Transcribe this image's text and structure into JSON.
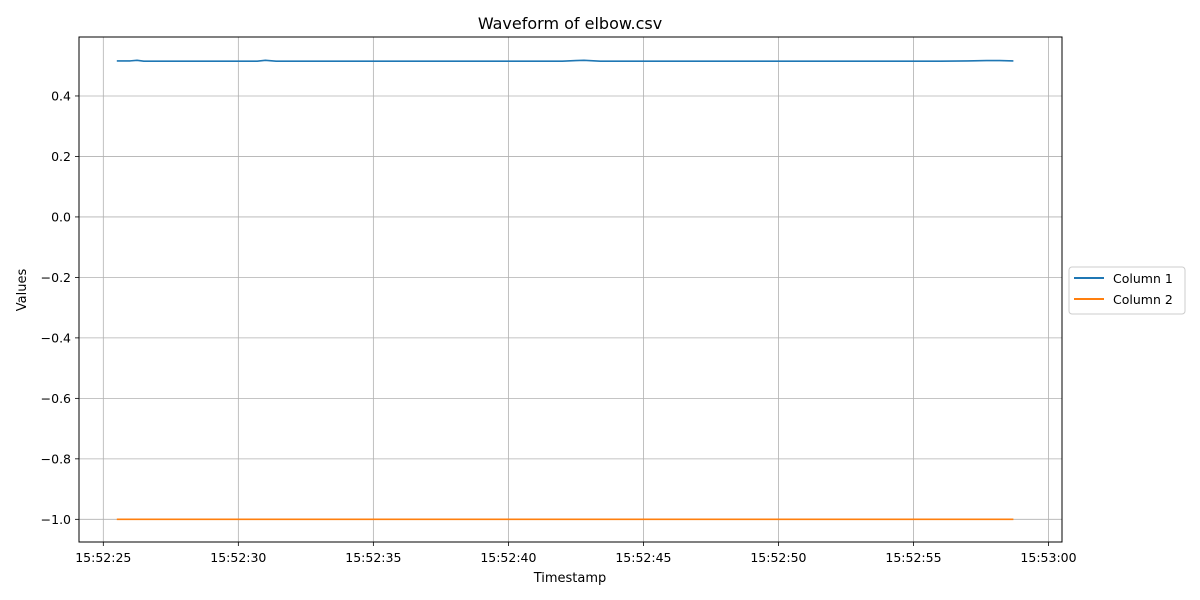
{
  "chart_data": {
    "type": "line",
    "title": "Waveform of elbow.csv",
    "xlabel": "Timestamp",
    "ylabel": "Values",
    "x_ticks": [
      "15:52:25",
      "15:52:30",
      "15:52:35",
      "15:52:40",
      "15:52:45",
      "15:52:50",
      "15:52:55",
      "15:53:00"
    ],
    "y_ticks": [
      "0.4",
      "0.2",
      "0.0",
      "−0.2",
      "−0.4",
      "−0.6",
      "−0.8",
      "−1.0"
    ],
    "y_tick_values": [
      0.4,
      0.2,
      0.0,
      -0.2,
      -0.4,
      -0.6,
      -0.8,
      -1.0
    ],
    "xlim": [
      "15:52:24.100",
      "15:53:00.500"
    ],
    "ylim": [
      -1.075,
      0.595
    ],
    "grid": true,
    "legend_position": "center-right-outside",
    "x": [
      "15:52:25.500",
      "15:52:26.000",
      "15:52:26.250",
      "15:52:26.500",
      "15:52:27.000",
      "15:52:28.000",
      "15:52:29.000",
      "15:52:30.000",
      "15:52:30.700",
      "15:52:31.000",
      "15:52:31.400",
      "15:52:32.000",
      "15:52:34.000",
      "15:52:36.000",
      "15:52:38.000",
      "15:52:40.000",
      "15:52:42.000",
      "15:52:42.500",
      "15:52:42.800",
      "15:52:43.400",
      "15:52:44.000",
      "15:52:46.000",
      "15:52:48.000",
      "15:52:50.000",
      "15:52:52.000",
      "15:52:54.000",
      "15:52:56.000",
      "15:52:57.000",
      "15:52:57.700",
      "15:52:58.200",
      "15:52:58.700"
    ],
    "series": [
      {
        "name": "Column 1",
        "color": "#1f77b4",
        "values": [
          0.516,
          0.516,
          0.518,
          0.515,
          0.515,
          0.515,
          0.515,
          0.515,
          0.515,
          0.518,
          0.515,
          0.515,
          0.515,
          0.515,
          0.515,
          0.515,
          0.515,
          0.517,
          0.518,
          0.515,
          0.515,
          0.515,
          0.515,
          0.515,
          0.515,
          0.515,
          0.515,
          0.516,
          0.517,
          0.517,
          0.516
        ]
      },
      {
        "name": "Column 2",
        "color": "#ff7f0e",
        "values": [
          -1.0,
          -1.0,
          -1.0,
          -1.0,
          -1.0,
          -1.0,
          -1.0,
          -1.0,
          -1.0,
          -1.0,
          -1.0,
          -1.0,
          -1.0,
          -1.0,
          -1.0,
          -1.0,
          -1.0,
          -1.0,
          -1.0,
          -1.0,
          -1.0,
          -1.0,
          -1.0,
          -1.0,
          -1.0,
          -1.0,
          -1.0,
          -1.0,
          -1.0,
          -1.0,
          -1.0
        ]
      }
    ]
  }
}
